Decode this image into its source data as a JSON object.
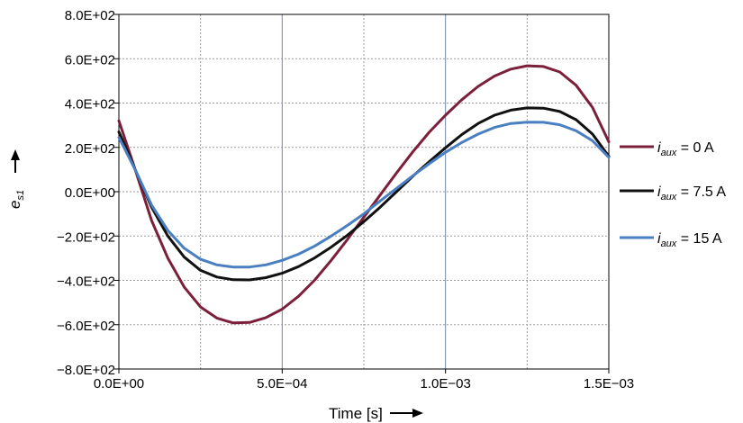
{
  "chart_data": {
    "type": "line",
    "xlabel": "Time [s]",
    "ylabel_main": "e",
    "ylabel_sub": "s1",
    "xlim": [
      0,
      0.0015
    ],
    "ylim": [
      -800,
      800
    ],
    "x_ticks": [
      {
        "value": 0,
        "label": "0.0E+00"
      },
      {
        "value": 0.0005,
        "label": "5.0E−04"
      },
      {
        "value": 0.001,
        "label": "1.0E−03"
      },
      {
        "value": 0.0015,
        "label": "1.5E−03"
      }
    ],
    "y_ticks": [
      {
        "value": 800,
        "label": "8.0E+02"
      },
      {
        "value": 600,
        "label": "6.0E+02"
      },
      {
        "value": 400,
        "label": "4.0E+02"
      },
      {
        "value": 200,
        "label": "2.0E+02"
      },
      {
        "value": 0,
        "label": "0.0E+00"
      },
      {
        "value": -200,
        "label": "−2.0E+02"
      },
      {
        "value": -400,
        "label": "−4.0E+02"
      },
      {
        "value": -600,
        "label": "−6.0E+02"
      },
      {
        "value": -800,
        "label": "−8.0E+02"
      }
    ],
    "grid": true,
    "legend_position": "right",
    "series": [
      {
        "name_main": "i",
        "name_sub": "aux",
        "name_rest": " = 0 A",
        "color": "#7B1F3A",
        "points": [
          [
            0,
            320
          ],
          [
            5e-05,
            100
          ],
          [
            0.0001,
            -130
          ],
          [
            0.00015,
            -300
          ],
          [
            0.0002,
            -430
          ],
          [
            0.00025,
            -520
          ],
          [
            0.0003,
            -570
          ],
          [
            0.00035,
            -592
          ],
          [
            0.0004,
            -590
          ],
          [
            0.00045,
            -568
          ],
          [
            0.0005,
            -530
          ],
          [
            0.00055,
            -472
          ],
          [
            0.0006,
            -398
          ],
          [
            0.00065,
            -310
          ],
          [
            0.0007,
            -215
          ],
          [
            0.00075,
            -115
          ],
          [
            0.0008,
            -15
          ],
          [
            0.00085,
            85
          ],
          [
            0.0009,
            180
          ],
          [
            0.00095,
            268
          ],
          [
            0.001,
            345
          ],
          [
            0.00105,
            415
          ],
          [
            0.0011,
            475
          ],
          [
            0.00115,
            522
          ],
          [
            0.0012,
            553
          ],
          [
            0.00125,
            568
          ],
          [
            0.0013,
            565
          ],
          [
            0.00135,
            540
          ],
          [
            0.0014,
            480
          ],
          [
            0.00145,
            380
          ],
          [
            0.0015,
            225
          ]
        ]
      },
      {
        "name_main": "i",
        "name_sub": "aux",
        "name_rest": " = 7.5 A",
        "color": "#111111",
        "points": [
          [
            0,
            270
          ],
          [
            5e-05,
            100
          ],
          [
            0.0001,
            -70
          ],
          [
            0.00015,
            -200
          ],
          [
            0.0002,
            -295
          ],
          [
            0.00025,
            -355
          ],
          [
            0.0003,
            -385
          ],
          [
            0.00035,
            -397
          ],
          [
            0.0004,
            -398
          ],
          [
            0.00045,
            -388
          ],
          [
            0.0005,
            -368
          ],
          [
            0.00055,
            -338
          ],
          [
            0.0006,
            -298
          ],
          [
            0.00065,
            -250
          ],
          [
            0.0007,
            -196
          ],
          [
            0.00075,
            -135
          ],
          [
            0.0008,
            -70
          ],
          [
            0.00085,
            0
          ],
          [
            0.0009,
            70
          ],
          [
            0.00095,
            135
          ],
          [
            0.001,
            198
          ],
          [
            0.00105,
            258
          ],
          [
            0.0011,
            308
          ],
          [
            0.00115,
            345
          ],
          [
            0.0012,
            368
          ],
          [
            0.00125,
            378
          ],
          [
            0.0013,
            377
          ],
          [
            0.00135,
            362
          ],
          [
            0.0014,
            325
          ],
          [
            0.00145,
            260
          ],
          [
            0.0015,
            160
          ]
        ]
      },
      {
        "name_main": "i",
        "name_sub": "aux",
        "name_rest": " = 15 A",
        "color": "#4A7FC1",
        "points": [
          [
            0,
            245
          ],
          [
            5e-05,
            100
          ],
          [
            0.0001,
            -60
          ],
          [
            0.00015,
            -175
          ],
          [
            0.0002,
            -255
          ],
          [
            0.00025,
            -305
          ],
          [
            0.0003,
            -330
          ],
          [
            0.00035,
            -340
          ],
          [
            0.0004,
            -340
          ],
          [
            0.00045,
            -330
          ],
          [
            0.0005,
            -310
          ],
          [
            0.00055,
            -282
          ],
          [
            0.0006,
            -245
          ],
          [
            0.00065,
            -200
          ],
          [
            0.0007,
            -152
          ],
          [
            0.00075,
            -100
          ],
          [
            0.0008,
            -42
          ],
          [
            0.00085,
            15
          ],
          [
            0.0009,
            72
          ],
          [
            0.00095,
            126
          ],
          [
            0.001,
            178
          ],
          [
            0.00105,
            222
          ],
          [
            0.0011,
            260
          ],
          [
            0.00115,
            290
          ],
          [
            0.0012,
            308
          ],
          [
            0.00125,
            314
          ],
          [
            0.0013,
            313
          ],
          [
            0.00135,
            302
          ],
          [
            0.0014,
            275
          ],
          [
            0.00145,
            230
          ],
          [
            0.0015,
            155
          ]
        ]
      }
    ]
  }
}
